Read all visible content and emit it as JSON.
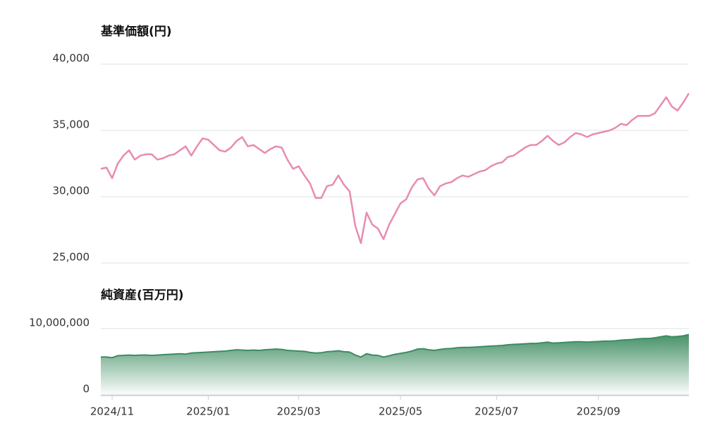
{
  "chart_data": [
    {
      "type": "line",
      "title": "基準価額(円)",
      "color": "#e98bb2",
      "grid": true,
      "ylim": [
        25000,
        40000
      ],
      "yticks": [
        {
          "value": 25000,
          "label": "25,000"
        },
        {
          "value": 30000,
          "label": "30,000"
        },
        {
          "value": 35000,
          "label": "35,000"
        },
        {
          "value": 40000,
          "label": "40,000"
        }
      ],
      "values": [
        32100,
        32200,
        31400,
        32500,
        33100,
        33500,
        32800,
        33100,
        33200,
        33200,
        32800,
        32900,
        33100,
        33200,
        33500,
        33800,
        33100,
        33800,
        34400,
        34300,
        33900,
        33500,
        33400,
        33700,
        34200,
        34500,
        33800,
        33900,
        33600,
        33300,
        33600,
        33800,
        33700,
        32800,
        32100,
        32300,
        31600,
        31000,
        29900,
        29900,
        30800,
        30900,
        31600,
        30900,
        30400,
        27800,
        26500,
        28800,
        27900,
        27600,
        26800,
        27900,
        28700,
        29500,
        29800,
        30700,
        31300,
        31400,
        30600,
        30100,
        30800,
        31000,
        31100,
        31400,
        31600,
        31500,
        31700,
        31900,
        32000,
        32300,
        32500,
        32600,
        33000,
        33100,
        33400,
        33700,
        33900,
        33900,
        34200,
        34600,
        34200,
        33900,
        34100,
        34500,
        34800,
        34700,
        34500,
        34700,
        34800,
        34900,
        35000,
        35200,
        35500,
        35400,
        35800,
        36100,
        36100,
        36100,
        36300,
        36900,
        37500,
        36800,
        36500,
        37100,
        37800
      ]
    },
    {
      "type": "area",
      "title": "純資産(百万円)",
      "color": "#3d8c60",
      "grid": true,
      "ylim": [
        0,
        10000000
      ],
      "yticks": [
        0,
        {
          "value": 10000000,
          "label": "10,000,000"
        }
      ],
      "categories": [
        null,
        null,
        "2024/11",
        null,
        null,
        null,
        null,
        null,
        null,
        null,
        null,
        null,
        null,
        null,
        null,
        null,
        null,
        null,
        null,
        "2025/01",
        null,
        null,
        null,
        null,
        null,
        null,
        null,
        null,
        null,
        null,
        null,
        null,
        null,
        null,
        null,
        "2025/03",
        null,
        null,
        null,
        null,
        null,
        null,
        null,
        null,
        null,
        null,
        null,
        null,
        null,
        null,
        null,
        null,
        null,
        "2025/05",
        null,
        null,
        null,
        null,
        null,
        null,
        null,
        null,
        null,
        null,
        null,
        null,
        null,
        null,
        null,
        null,
        "2025/07",
        null,
        null,
        null,
        null,
        null,
        null,
        null,
        null,
        null,
        null,
        null,
        null,
        null,
        null,
        null,
        null,
        null,
        "2025/09",
        null,
        null,
        null,
        null,
        null,
        null,
        null,
        null,
        null,
        null,
        null,
        null,
        null,
        null,
        null,
        null
      ],
      "values": [
        5700000,
        5700000,
        5600000,
        5900000,
        5950000,
        6000000,
        5950000,
        6000000,
        6000000,
        5950000,
        6000000,
        6050000,
        6100000,
        6150000,
        6200000,
        6150000,
        6300000,
        6350000,
        6400000,
        6450000,
        6500000,
        6550000,
        6600000,
        6700000,
        6800000,
        6750000,
        6700000,
        6750000,
        6700000,
        6800000,
        6850000,
        6900000,
        6850000,
        6700000,
        6650000,
        6600000,
        6550000,
        6400000,
        6300000,
        6350000,
        6500000,
        6550000,
        6650000,
        6500000,
        6450000,
        6000000,
        5700000,
        6200000,
        6000000,
        5950000,
        5700000,
        5900000,
        6100000,
        6250000,
        6400000,
        6600000,
        6900000,
        6950000,
        6800000,
        6700000,
        6850000,
        6950000,
        7000000,
        7100000,
        7150000,
        7150000,
        7200000,
        7250000,
        7300000,
        7350000,
        7400000,
        7450000,
        7550000,
        7600000,
        7650000,
        7700000,
        7750000,
        7750000,
        7850000,
        7950000,
        7800000,
        7850000,
        7900000,
        7950000,
        8000000,
        8000000,
        7950000,
        8000000,
        8050000,
        8100000,
        8100000,
        8150000,
        8250000,
        8300000,
        8350000,
        8450000,
        8500000,
        8500000,
        8600000,
        8750000,
        8900000,
        8750000,
        8800000,
        8900000,
        9100000
      ]
    }
  ]
}
